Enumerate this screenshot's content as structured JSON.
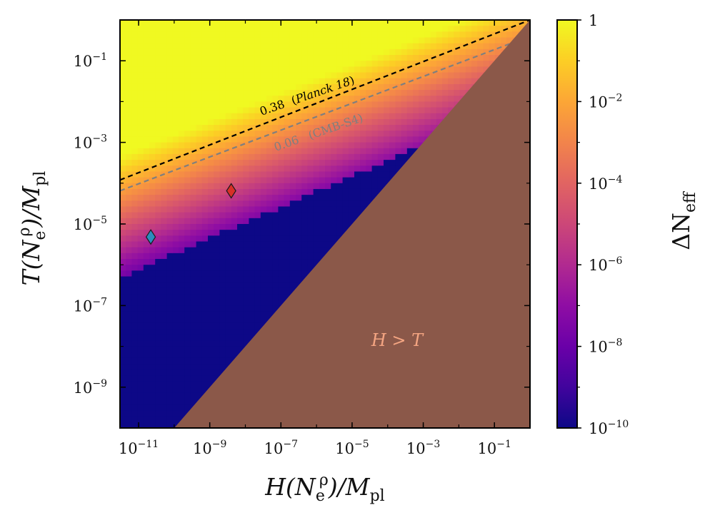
{
  "chart_data": {
    "type": "heatmap",
    "xlabel": {
      "main": "H(N",
      "sub": "e",
      "sup": "ρ",
      "rest": ")/M",
      "sub2": "pl"
    },
    "ylabel": {
      "main": "T(N",
      "sub": "e",
      "sup": "ρ",
      "rest": ")/M",
      "sub2": "pl"
    },
    "x_scale": "log",
    "y_scale": "log",
    "xlim": [
      3e-12,
      1
    ],
    "ylim": [
      1e-10,
      1
    ],
    "x_ticks": [
      {
        "base": "10",
        "exp": "−11",
        "value": 1e-11
      },
      {
        "base": "10",
        "exp": "−9",
        "value": 1e-09
      },
      {
        "base": "10",
        "exp": "−7",
        "value": 1e-07
      },
      {
        "base": "10",
        "exp": "−5",
        "value": 1e-05
      },
      {
        "base": "10",
        "exp": "−3",
        "value": 0.001
      },
      {
        "base": "10",
        "exp": "−1",
        "value": 0.1
      }
    ],
    "y_ticks": [
      {
        "base": "10",
        "exp": "−1",
        "value": 0.1
      },
      {
        "base": "10",
        "exp": "−3",
        "value": 0.001
      },
      {
        "base": "10",
        "exp": "−5",
        "value": 1e-05
      },
      {
        "base": "10",
        "exp": "−7",
        "value": 1e-07
      },
      {
        "base": "10",
        "exp": "−9",
        "value": 1e-09
      }
    ],
    "colorbar": {
      "label": "ΔN",
      "label_sub": "eff",
      "scale": "log",
      "range": [
        1e-10,
        1
      ],
      "colormap": "plasma",
      "ticks": [
        {
          "base": "1",
          "exp": "",
          "value": 1
        },
        {
          "base": "10",
          "exp": "−2",
          "value": 0.01
        },
        {
          "base": "10",
          "exp": "−4",
          "value": 0.0001
        },
        {
          "base": "10",
          "exp": "−6",
          "value": 1e-06
        },
        {
          "base": "10",
          "exp": "−8",
          "value": 1e-08
        },
        {
          "base": "10",
          "exp": "−10",
          "value": 1e-10
        }
      ]
    },
    "contours": [
      {
        "label_value": "0.38",
        "label_name": "Planck 18",
        "color": "#000000",
        "dash": true,
        "points": [
          [
            3e-12,
            0.00012
          ],
          [
            1,
            1.0
          ]
        ]
      },
      {
        "label_value": "0.06",
        "label_name": "(CMB-S4)",
        "color": "#7f7f7f",
        "dash": true,
        "points": [
          [
            3e-12,
            6.5e-05
          ],
          [
            1,
            0.4
          ]
        ]
      }
    ],
    "excluded_region": {
      "label": "H > T",
      "color": "#8b5849",
      "text_color": "#f4a582",
      "boundary": [
        [
          1e-10,
          1e-10
        ],
        [
          1,
          1
        ]
      ]
    },
    "markers": [
      {
        "name": "blue",
        "x": 2.2e-11,
        "y": 4.8e-06,
        "color": "#2b8cbe",
        "shape": "diamond"
      },
      {
        "name": "red",
        "x": 4e-09,
        "y": 6.5e-05,
        "color": "#d73027",
        "shape": "diamond"
      }
    ]
  }
}
